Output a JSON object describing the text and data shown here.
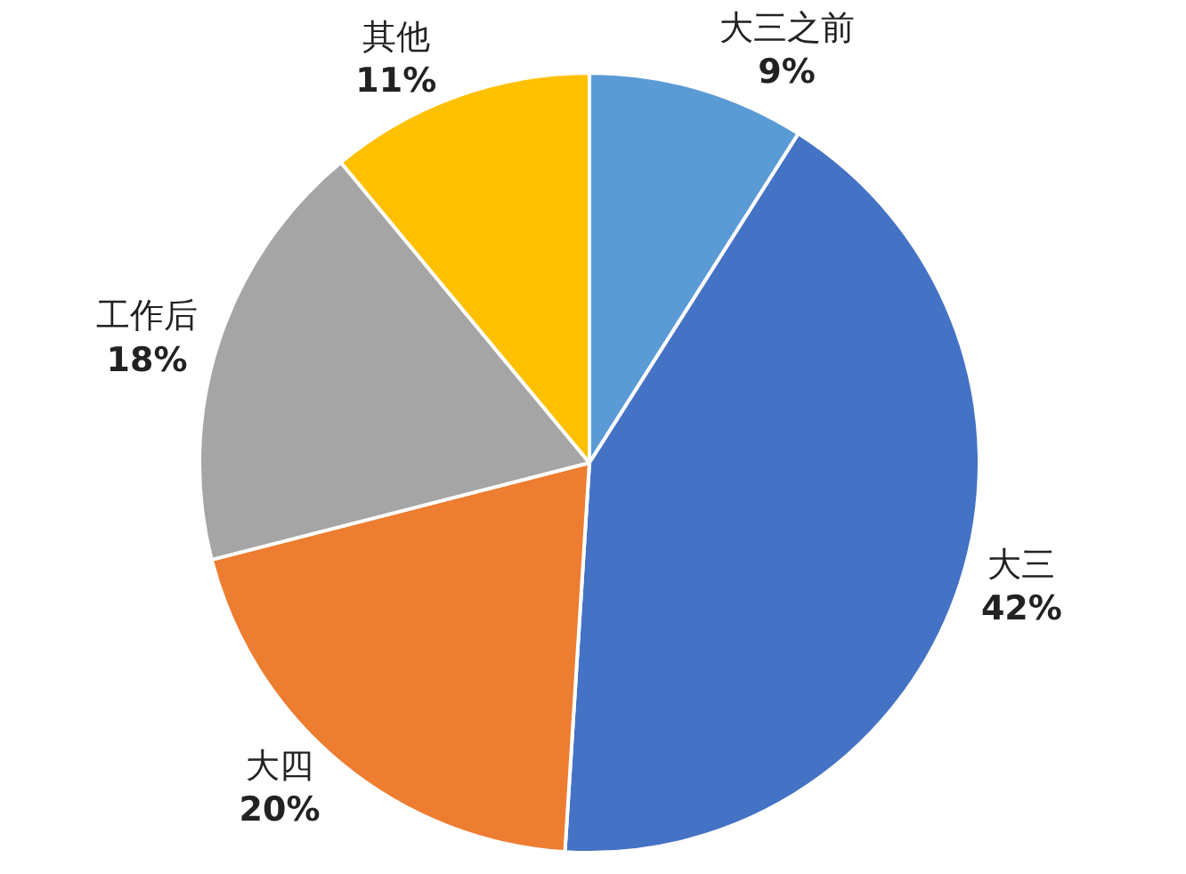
{
  "chart_data": {
    "type": "pie",
    "categories": [
      "大三之前",
      "大三",
      "大四",
      "工作后",
      "其他"
    ],
    "values": [
      9,
      42,
      20,
      18,
      11
    ],
    "value_labels": [
      "9%",
      "42%",
      "20%",
      "18%",
      "11%"
    ],
    "colors": [
      "#5b9bd5",
      "#4472c4",
      "#ed7d31",
      "#a5a5a5",
      "#ffc000"
    ],
    "legend": false
  }
}
